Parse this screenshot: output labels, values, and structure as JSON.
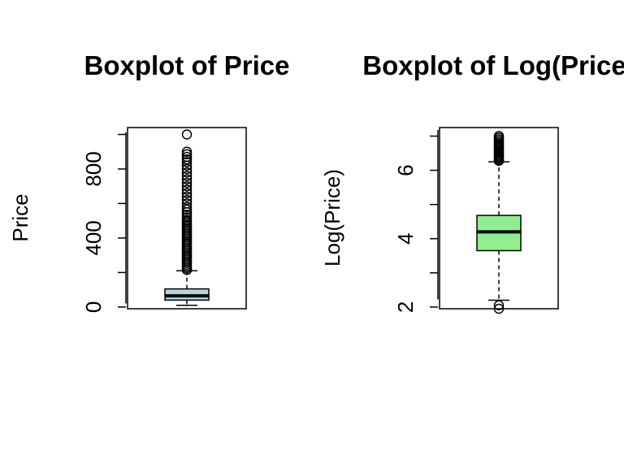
{
  "chart_data": [
    {
      "type": "boxplot",
      "title": "Boxplot of Price",
      "xlabel": "",
      "ylabel": "Price",
      "ylim": [
        -10,
        1040
      ],
      "yticks": [
        0,
        200,
        400,
        600,
        800,
        1000
      ],
      "ytick_labels": [
        "0",
        "",
        "400",
        "",
        "800",
        ""
      ],
      "box_color": "#ADD8E6",
      "grid": false,
      "stats": {
        "whisker_low": 10,
        "q1": 40,
        "median": 65,
        "q3": 105,
        "whisker_high": 210
      },
      "outliers": [
        215,
        225,
        235,
        245,
        255,
        265,
        275,
        285,
        295,
        305,
        315,
        325,
        335,
        345,
        355,
        365,
        375,
        385,
        395,
        405,
        415,
        425,
        435,
        445,
        455,
        465,
        475,
        485,
        495,
        505,
        520,
        535,
        550,
        565,
        580,
        600,
        620,
        640,
        660,
        680,
        700,
        720,
        740,
        760,
        780,
        800,
        820,
        840,
        855,
        870,
        885,
        900,
        1000
      ]
    },
    {
      "type": "boxplot",
      "title": "Boxplot of Log(Price)",
      "xlabel": "",
      "ylabel": "Log(Price)",
      "ylim": [
        1.95,
        7.25
      ],
      "yticks": [
        2,
        3,
        4,
        5,
        6,
        7
      ],
      "ytick_labels": [
        "2",
        "",
        "4",
        "",
        "6",
        ""
      ],
      "box_color": "#90EE90",
      "grid": false,
      "stats": {
        "whisker_low": 2.2,
        "q1": 3.65,
        "median": 4.2,
        "q3": 4.68,
        "whisker_high": 6.25
      },
      "outliers": [
        1.95,
        2.05,
        6.28,
        6.32,
        6.36,
        6.4,
        6.44,
        6.48,
        6.52,
        6.56,
        6.6,
        6.64,
        6.68,
        6.72,
        6.76,
        6.8,
        6.85,
        6.9,
        6.95,
        7.0
      ]
    }
  ]
}
